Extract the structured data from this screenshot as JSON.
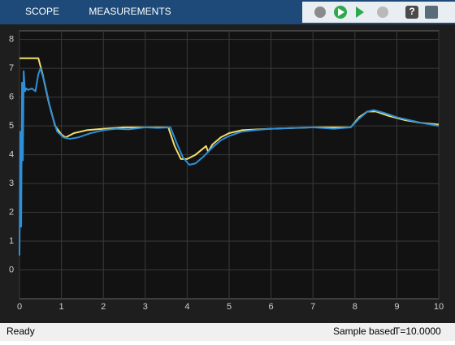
{
  "toolbar": {
    "tabs": [
      "SCOPE",
      "MEASUREMENTS"
    ]
  },
  "status": {
    "state": "Ready",
    "mode": "Sample based",
    "time": "T=10.0000"
  },
  "chart_data": {
    "type": "line",
    "xlim": [
      0,
      10
    ],
    "ylim": [
      -1,
      8.3
    ],
    "xticks": [
      0,
      1,
      2,
      3,
      4,
      5,
      6,
      7,
      8,
      9,
      10
    ],
    "yticks": [
      0,
      1,
      2,
      3,
      4,
      5,
      6,
      7,
      8
    ],
    "grid": true,
    "series": [
      {
        "color": "#f2df6a",
        "x": [
          0,
          0.45,
          0.55,
          0.7,
          0.85,
          1.0,
          1.1,
          1.3,
          1.6,
          2.0,
          2.5,
          3.0,
          3.55,
          3.7,
          3.85,
          4.0,
          4.2,
          4.45,
          4.5,
          4.6,
          4.8,
          5.0,
          5.3,
          6,
          7,
          7.9,
          8.1,
          8.3,
          8.5,
          8.8,
          9.2,
          9.6,
          10
        ],
        "values": [
          7.35,
          7.35,
          6.8,
          5.8,
          5.0,
          4.7,
          4.6,
          4.75,
          4.85,
          4.9,
          4.95,
          4.95,
          4.95,
          4.3,
          3.85,
          3.85,
          4.0,
          4.3,
          4.1,
          4.35,
          4.6,
          4.75,
          4.85,
          4.9,
          4.95,
          4.95,
          5.3,
          5.5,
          5.5,
          5.35,
          5.2,
          5.1,
          5.05
        ]
      },
      {
        "color": "#2e8fd8",
        "x": [
          0,
          0.02,
          0.04,
          0.06,
          0.08,
          0.1,
          0.13,
          0.16,
          0.2,
          0.3,
          0.38,
          0.45,
          0.5,
          0.6,
          0.75,
          0.9,
          1.05,
          1.2,
          1.4,
          1.7,
          2.0,
          2.3,
          2.6,
          3.0,
          3.3,
          3.6,
          3.75,
          3.9,
          4.05,
          4.2,
          4.4,
          4.6,
          4.8,
          5.0,
          5.3,
          5.6,
          6.0,
          6.5,
          7.0,
          7.5,
          7.9,
          8.1,
          8.3,
          8.45,
          8.7,
          9.0,
          9.3,
          9.6,
          9.8,
          10
        ],
        "values": [
          0.5,
          4.8,
          1.5,
          6.5,
          3.8,
          6.9,
          6.2,
          6.3,
          6.25,
          6.3,
          6.2,
          6.8,
          7.0,
          6.5,
          5.5,
          4.8,
          4.6,
          4.55,
          4.6,
          4.75,
          4.85,
          4.9,
          4.88,
          4.95,
          4.93,
          4.95,
          4.4,
          3.9,
          3.65,
          3.7,
          3.95,
          4.25,
          4.5,
          4.65,
          4.8,
          4.85,
          4.9,
          4.93,
          4.95,
          4.9,
          4.95,
          5.25,
          5.5,
          5.55,
          5.45,
          5.3,
          5.2,
          5.1,
          5.05,
          5.0
        ]
      }
    ]
  }
}
